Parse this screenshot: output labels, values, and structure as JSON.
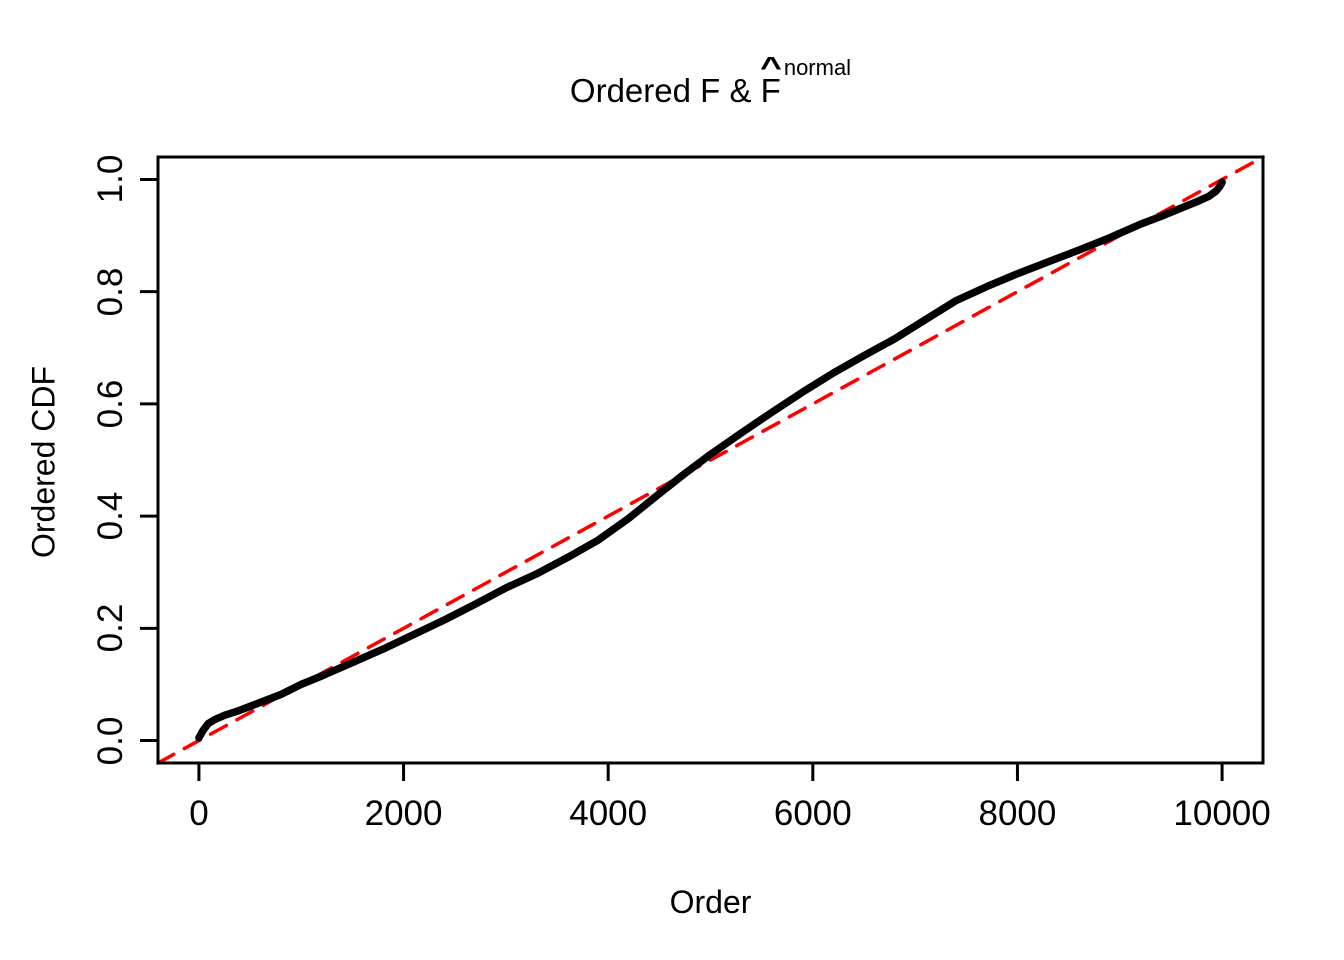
{
  "chart_data": {
    "type": "line",
    "title_main": "Ordered F & ",
    "title_hat_base": "F",
    "title_hat_accent": "^",
    "title_superscript": "normal",
    "xlabel": "Order",
    "ylabel": "Ordered CDF",
    "xlim": [
      -400,
      10400
    ],
    "ylim": [
      -0.04,
      1.04
    ],
    "x_ticks": [
      0,
      2000,
      4000,
      6000,
      8000,
      10000
    ],
    "x_tick_labels": [
      "0",
      "2000",
      "4000",
      "6000",
      "8000",
      "10000"
    ],
    "y_ticks": [
      0.0,
      0.2,
      0.4,
      0.6,
      0.8,
      1.0
    ],
    "y_tick_labels": [
      "0.0",
      "0.2",
      "0.4",
      "0.6",
      "0.8",
      "1.0"
    ],
    "grid": false,
    "legend_position": "none",
    "colors": {
      "curve": "#000000",
      "reference_line": "#ff0000",
      "axis": "#000000",
      "background": "#ffffff"
    },
    "series": [
      {
        "name": "reference-diagonal",
        "type": "line",
        "style": "dashed",
        "color": "#ff0000",
        "line_width": 3.5,
        "points": [
          [
            -400,
            -0.04
          ],
          [
            10400,
            1.04
          ]
        ]
      },
      {
        "name": "ordered-normal-cdf",
        "type": "line",
        "style": "solid",
        "color": "#000000",
        "line_width": 7.5,
        "points": [
          [
            0,
            0.005
          ],
          [
            40,
            0.018
          ],
          [
            90,
            0.03
          ],
          [
            150,
            0.037
          ],
          [
            250,
            0.045
          ],
          [
            400,
            0.054
          ],
          [
            600,
            0.068
          ],
          [
            800,
            0.082
          ],
          [
            1000,
            0.1
          ],
          [
            1200,
            0.115
          ],
          [
            1500,
            0.139
          ],
          [
            1800,
            0.163
          ],
          [
            2100,
            0.189
          ],
          [
            2400,
            0.215
          ],
          [
            2700,
            0.243
          ],
          [
            3000,
            0.272
          ],
          [
            3300,
            0.297
          ],
          [
            3600,
            0.326
          ],
          [
            3900,
            0.357
          ],
          [
            4200,
            0.396
          ],
          [
            4500,
            0.44
          ],
          [
            4750,
            0.476
          ],
          [
            5000,
            0.51
          ],
          [
            5300,
            0.548
          ],
          [
            5600,
            0.585
          ],
          [
            5900,
            0.621
          ],
          [
            6200,
            0.655
          ],
          [
            6500,
            0.686
          ],
          [
            6800,
            0.716
          ],
          [
            7100,
            0.75
          ],
          [
            7400,
            0.784
          ],
          [
            7700,
            0.809
          ],
          [
            8000,
            0.832
          ],
          [
            8300,
            0.853
          ],
          [
            8600,
            0.874
          ],
          [
            8900,
            0.896
          ],
          [
            9200,
            0.92
          ],
          [
            9400,
            0.934
          ],
          [
            9600,
            0.949
          ],
          [
            9750,
            0.96
          ],
          [
            9870,
            0.97
          ],
          [
            9940,
            0.979
          ],
          [
            9980,
            0.988
          ],
          [
            10000,
            0.995
          ]
        ]
      }
    ]
  }
}
